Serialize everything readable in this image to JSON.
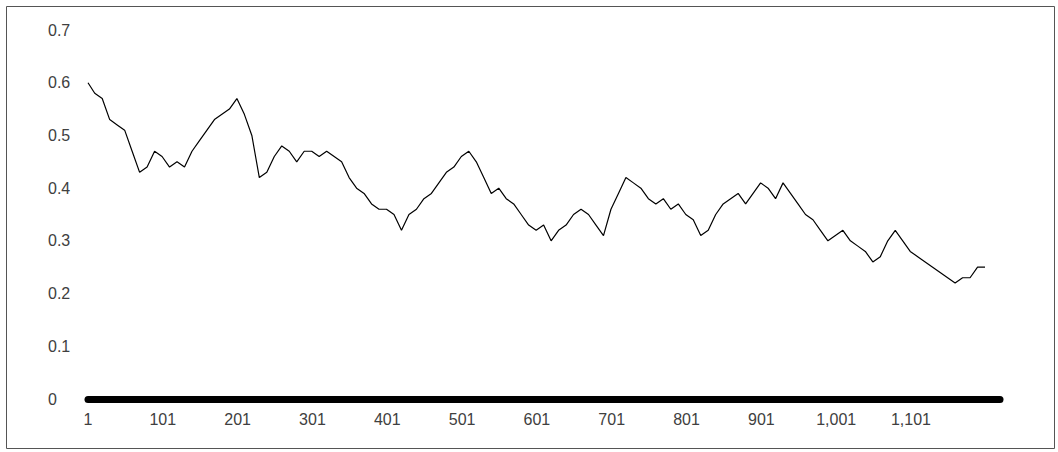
{
  "chart_data": {
    "type": "line",
    "x": [
      1,
      10,
      20,
      30,
      40,
      50,
      60,
      70,
      80,
      90,
      100,
      110,
      120,
      130,
      140,
      150,
      160,
      170,
      180,
      190,
      200,
      210,
      220,
      230,
      240,
      250,
      260,
      270,
      280,
      290,
      300,
      310,
      320,
      330,
      340,
      350,
      360,
      370,
      380,
      390,
      400,
      410,
      420,
      430,
      440,
      450,
      460,
      470,
      480,
      490,
      500,
      510,
      520,
      530,
      540,
      550,
      560,
      570,
      580,
      590,
      600,
      610,
      620,
      630,
      640,
      650,
      660,
      670,
      680,
      690,
      700,
      710,
      720,
      730,
      740,
      750,
      760,
      770,
      780,
      790,
      800,
      810,
      820,
      830,
      840,
      850,
      860,
      870,
      880,
      890,
      900,
      910,
      920,
      930,
      940,
      950,
      960,
      970,
      980,
      990,
      1000,
      1010,
      1020,
      1030,
      1040,
      1050,
      1060,
      1070,
      1080,
      1090,
      1100,
      1110,
      1120,
      1130,
      1140,
      1150,
      1160,
      1170,
      1180,
      1190,
      1200
    ],
    "values": [
      0.6,
      0.58,
      0.57,
      0.53,
      0.52,
      0.51,
      0.47,
      0.43,
      0.44,
      0.47,
      0.46,
      0.44,
      0.45,
      0.44,
      0.47,
      0.49,
      0.51,
      0.53,
      0.54,
      0.55,
      0.57,
      0.54,
      0.5,
      0.42,
      0.43,
      0.46,
      0.48,
      0.47,
      0.45,
      0.47,
      0.47,
      0.46,
      0.47,
      0.46,
      0.45,
      0.42,
      0.4,
      0.39,
      0.37,
      0.36,
      0.36,
      0.35,
      0.32,
      0.35,
      0.36,
      0.38,
      0.39,
      0.41,
      0.43,
      0.44,
      0.46,
      0.47,
      0.45,
      0.42,
      0.39,
      0.4,
      0.38,
      0.37,
      0.35,
      0.33,
      0.32,
      0.33,
      0.3,
      0.32,
      0.33,
      0.35,
      0.36,
      0.35,
      0.33,
      0.31,
      0.36,
      0.39,
      0.42,
      0.41,
      0.4,
      0.38,
      0.37,
      0.38,
      0.36,
      0.37,
      0.35,
      0.34,
      0.31,
      0.32,
      0.35,
      0.37,
      0.38,
      0.39,
      0.37,
      0.39,
      0.41,
      0.4,
      0.38,
      0.41,
      0.39,
      0.37,
      0.35,
      0.34,
      0.32,
      0.3,
      0.31,
      0.32,
      0.3,
      0.29,
      0.28,
      0.26,
      0.27,
      0.3,
      0.32,
      0.3,
      0.28,
      0.27,
      0.26,
      0.25,
      0.24,
      0.23,
      0.22,
      0.23,
      0.23,
      0.25,
      0.25
    ],
    "color": "#000000",
    "xlim": [
      1,
      1220
    ],
    "xticks": [
      1,
      101,
      201,
      301,
      401,
      501,
      601,
      701,
      801,
      901,
      1001,
      1101
    ],
    "ylim": [
      0,
      0.7
    ],
    "yticks": [
      0,
      0.1,
      0.2,
      0.3,
      0.4,
      0.5,
      0.6,
      0.7
    ],
    "grid": false
  }
}
